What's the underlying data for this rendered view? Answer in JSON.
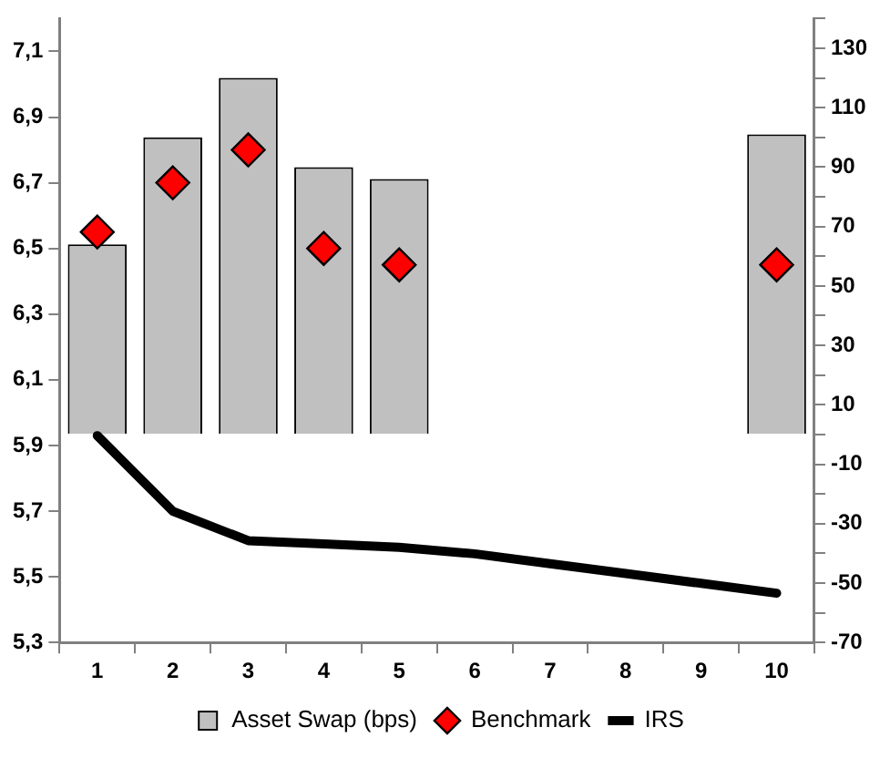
{
  "chart_data": {
    "type": "bar",
    "categories": [
      "1",
      "2",
      "3",
      "4",
      "5",
      "6",
      "7",
      "8",
      "9",
      "10"
    ],
    "series": [
      {
        "name": "Asset Swap (bps)",
        "axis": "y2",
        "color": "#c0c0c0",
        "values": [
          64,
          100,
          120,
          90,
          86,
          null,
          null,
          null,
          null,
          101
        ]
      },
      {
        "name": "Benchmark",
        "type": "scatter",
        "marker": "diamond",
        "color": "#ff0000",
        "values": [
          6.55,
          6.7,
          6.8,
          6.5,
          6.45,
          null,
          null,
          null,
          null,
          6.45
        ]
      },
      {
        "name": "IRS",
        "type": "line",
        "marker": "none",
        "color": "#000000",
        "values": [
          5.93,
          5.7,
          5.61,
          5.6,
          5.59,
          5.57,
          5.54,
          5.51,
          5.48,
          5.45
        ]
      }
    ],
    "ylim": [
      5.3,
      7.2
    ],
    "yticks": [
      {
        "value": 5.3,
        "label": "5,3"
      },
      {
        "value": 5.5,
        "label": "5,5"
      },
      {
        "value": 5.7,
        "label": "5,7"
      },
      {
        "value": 5.9,
        "label": "5,9"
      },
      {
        "value": 6.1,
        "label": "6,1"
      },
      {
        "value": 6.3,
        "label": "6,3"
      },
      {
        "value": 6.5,
        "label": "6,5"
      },
      {
        "value": 6.7,
        "label": "6,7"
      },
      {
        "value": 6.9,
        "label": "6,9"
      },
      {
        "value": 7.1,
        "label": "7,1"
      }
    ],
    "y2lim": [
      -70,
      140
    ],
    "y2ticks": [
      -70,
      {
        "value": -60,
        "label": null
      },
      -50,
      {
        "value": -40,
        "label": null
      },
      -30,
      {
        "value": -20,
        "label": null
      },
      -10,
      {
        "value": 0,
        "label": null
      },
      10,
      {
        "value": 20,
        "label": null
      },
      30,
      {
        "value": 40,
        "label": null
      },
      50,
      {
        "value": 60,
        "label": null
      },
      70,
      {
        "value": 80,
        "label": null
      },
      90,
      {
        "value": 100,
        "label": null
      },
      110,
      {
        "value": 120,
        "label": null
      },
      130,
      {
        "value": 140,
        "label": null
      }
    ],
    "grid": false,
    "legend": "bottom"
  }
}
